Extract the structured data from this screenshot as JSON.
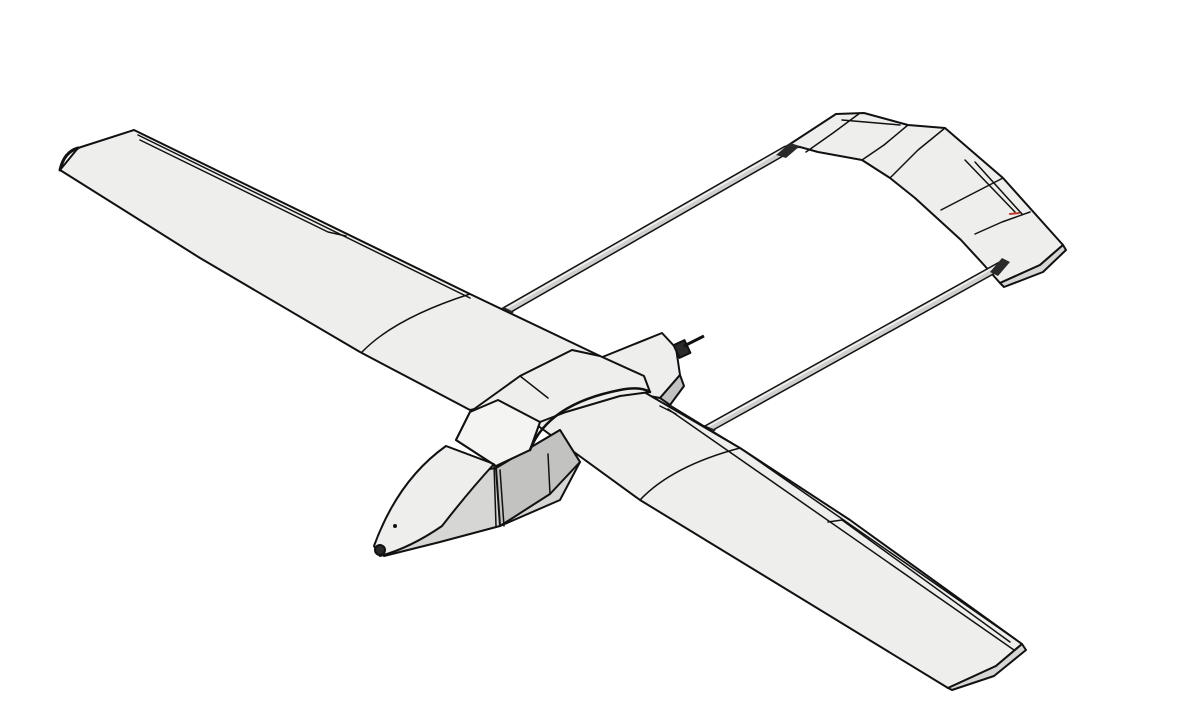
{
  "scene": {
    "subject": "uav-twin-boom-cad-render",
    "background_color": "#ffffff",
    "surface_color": "#eeeeec",
    "surface_light_color": "#f4f4f2",
    "surface_shade_color": "#d6d6d4",
    "surface_dark_color": "#c2c2c0",
    "outline_color": "#111111",
    "boom_color": "#cfcfcd",
    "boom_highlight_color": "#f2f2f0",
    "mount_color": "#2a2a2a",
    "accent_color": "#c0392b"
  }
}
